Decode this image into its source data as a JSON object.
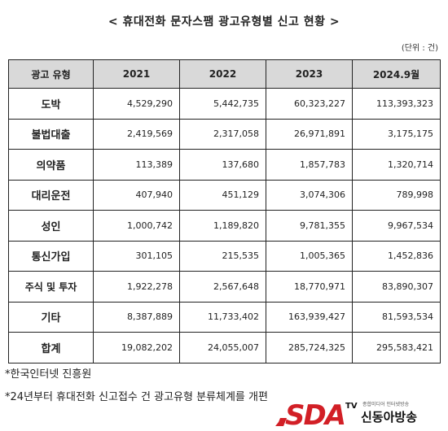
{
  "title": "< 휴대전화 문자스팸 광고유형별 신고 현황 >",
  "unit": "(단위 : 건)",
  "table": {
    "headers": [
      "광고 유형",
      "2021",
      "2022",
      "2023",
      "2024.9월"
    ],
    "rows": [
      {
        "type": "도박",
        "values": [
          "4,529,290",
          "5,442,735",
          "60,323,227",
          "113,393,323"
        ]
      },
      {
        "type": "불법대출",
        "values": [
          "2,419,569",
          "2,317,058",
          "26,971,891",
          "3,175,175"
        ]
      },
      {
        "type": "의약품",
        "values": [
          "113,389",
          "137,680",
          "1,857,783",
          "1,320,714"
        ]
      },
      {
        "type": "대리운전",
        "values": [
          "407,940",
          "451,129",
          "3,074,306",
          "789,998"
        ]
      },
      {
        "type": "성인",
        "values": [
          "1,000,742",
          "1,189,820",
          "9,781,355",
          "9,967,534"
        ]
      },
      {
        "type": "통신가입",
        "values": [
          "301,105",
          "215,535",
          "1,005,365",
          "1,452,836"
        ]
      },
      {
        "type": "주식 및 투자",
        "values": [
          "1,922,278",
          "2,567,648",
          "18,770,971",
          "83,890,307"
        ]
      },
      {
        "type": "기타",
        "values": [
          "8,387,889",
          "11,733,402",
          "163,939,427",
          "81,593,534"
        ]
      },
      {
        "type": "합계",
        "values": [
          "19,082,202",
          "24,055,007",
          "285,724,325",
          "295,583,421"
        ]
      }
    ]
  },
  "notes": [
    "*한국인터넷 진흥원",
    "*24년부터 휴대전화 신고접수 건 광고유형 분류체계를 개편"
  ],
  "logo": {
    "mark": "SDA",
    "tv": "TV",
    "tagline": "종합미디어 인터넷방송",
    "name": "신동아방송"
  },
  "colors": {
    "header_bg": "#d9d9d9",
    "logo_red": "#d21f26",
    "border": "#222222"
  }
}
